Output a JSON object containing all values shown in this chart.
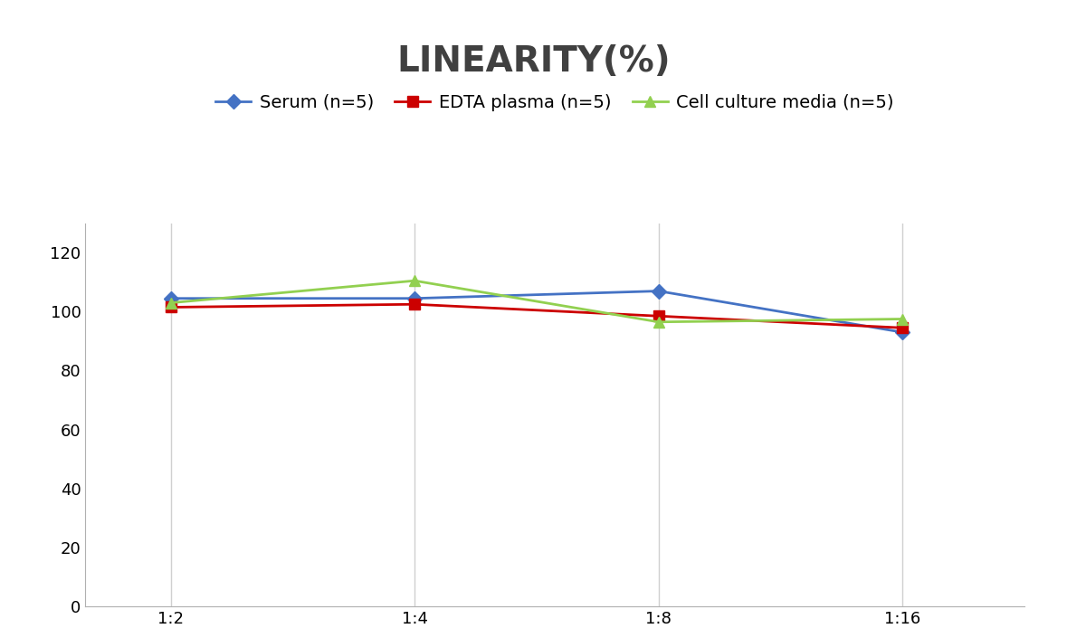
{
  "title": "LINEARITY(%)",
  "title_fontsize": 28,
  "title_fontweight": "bold",
  "title_color": "#404040",
  "x_labels": [
    "1:2",
    "1:4",
    "1:8",
    "1:16"
  ],
  "x_positions": [
    0,
    1,
    2,
    3
  ],
  "series": [
    {
      "label": "Serum (n=5)",
      "values": [
        104.5,
        104.5,
        107.0,
        93.0
      ],
      "color": "#4472C4",
      "marker": "D",
      "markersize": 8,
      "linewidth": 2.0
    },
    {
      "label": "EDTA plasma (n=5)",
      "values": [
        101.5,
        102.5,
        98.5,
        94.5
      ],
      "color": "#CC0000",
      "marker": "s",
      "markersize": 8,
      "linewidth": 2.0
    },
    {
      "label": "Cell culture media (n=5)",
      "values": [
        103.0,
        110.5,
        96.5,
        97.5
      ],
      "color": "#92D050",
      "marker": "^",
      "markersize": 8,
      "linewidth": 2.0
    }
  ],
  "ylim": [
    0,
    130
  ],
  "yticks": [
    0,
    20,
    40,
    60,
    80,
    100,
    120
  ],
  "xlim": [
    -0.35,
    3.5
  ],
  "background_color": "#ffffff",
  "grid_color": "#d0d0d0",
  "legend_fontsize": 14,
  "axis_tick_fontsize": 13
}
